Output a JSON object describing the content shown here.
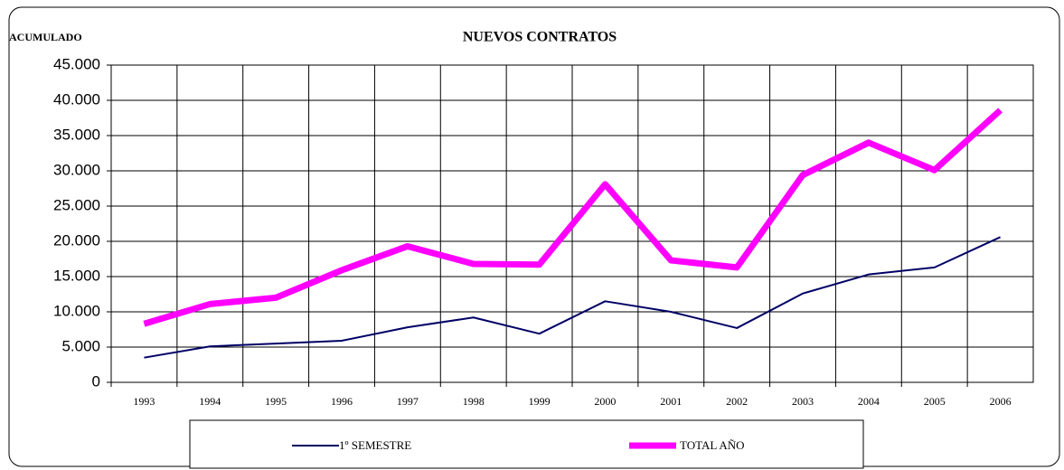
{
  "chart_data": {
    "type": "line",
    "title": "NUEVOS CONTRATOS",
    "y_label": "ACUMULADO",
    "categories": [
      "1993",
      "1994",
      "1995",
      "1996",
      "1997",
      "1998",
      "1999",
      "2000",
      "2001",
      "2002",
      "2003",
      "2004",
      "2005",
      "2006"
    ],
    "series": [
      {
        "name": "1º SEMESTRE",
        "color": "#000066",
        "values": [
          3500,
          5100,
          5500,
          5900,
          7800,
          9200,
          6900,
          11500,
          10000,
          7700,
          12600,
          15300,
          16300,
          20600
        ]
      },
      {
        "name": "TOTAL AÑO",
        "color": "#ff00ff",
        "values": [
          8300,
          11100,
          12000,
          15900,
          19300,
          16800,
          16700,
          28100,
          17300,
          16300,
          29400,
          34000,
          30100,
          38600
        ]
      }
    ],
    "ylim": [
      0,
      45000
    ],
    "yticks": [
      0,
      {
        "value": 5000,
        "label": "5.000"
      },
      {
        "value": 10000,
        "label": "10.000"
      },
      {
        "value": 15000,
        "label": "15.000"
      },
      {
        "value": 20000,
        "label": "20.000"
      },
      {
        "value": 25000,
        "label": "25.000"
      },
      {
        "value": 30000,
        "label": "30.000"
      },
      {
        "value": 35000,
        "label": "35.000"
      },
      {
        "value": 40000,
        "label": "40.000"
      },
      {
        "value": 45000,
        "label": "45.000"
      }
    ],
    "grid": true,
    "legend": "bottom"
  }
}
